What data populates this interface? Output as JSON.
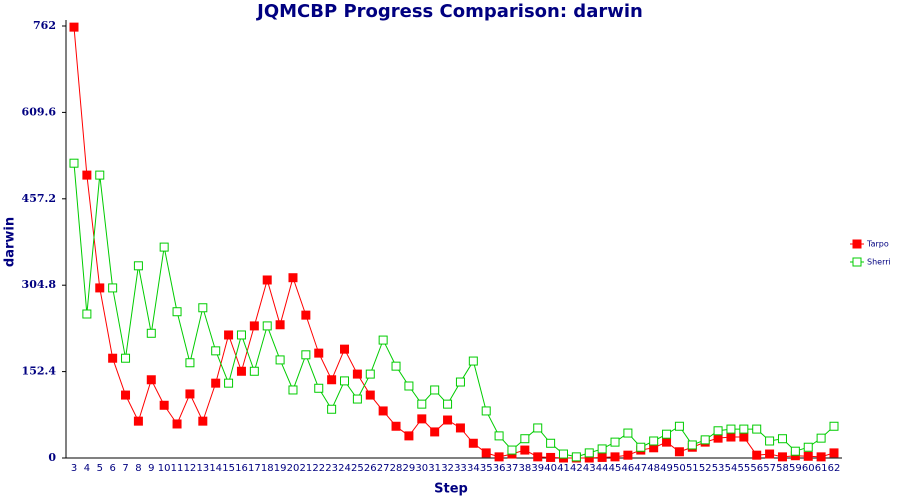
{
  "chart_data": {
    "type": "line",
    "title": "JQMCBP Progress Comparison: darwin",
    "x_label": "Step",
    "y_label": "darwin",
    "x": [
      3,
      4,
      5,
      6,
      7,
      8,
      9,
      10,
      11,
      12,
      13,
      14,
      15,
      16,
      17,
      18,
      19,
      20,
      21,
      22,
      23,
      24,
      25,
      26,
      27,
      28,
      29,
      30,
      31,
      32,
      33,
      34,
      35,
      36,
      37,
      38,
      39,
      40,
      41,
      42,
      43,
      44,
      45,
      46,
      47,
      48,
      49,
      50,
      51,
      52,
      53,
      54,
      55,
      56,
      57,
      58,
      59,
      60,
      61,
      62
    ],
    "series": [
      {
        "name": "Tarpo",
        "color": "#ff0000",
        "marker": "filled",
        "values": [
          760,
          499,
          300,
          176,
          111,
          65,
          138,
          93,
          60,
          113,
          65,
          132,
          217,
          153,
          233,
          314,
          235,
          318,
          252,
          185,
          138,
          192,
          148,
          111,
          83,
          56,
          39,
          69,
          46,
          67,
          53,
          26,
          9,
          2,
          7,
          14,
          2,
          1,
          0,
          0,
          0,
          1,
          2,
          5,
          14,
          18,
          28,
          11,
          19,
          28,
          35,
          37,
          37,
          5,
          7,
          2,
          4,
          3,
          2,
          9
        ]
      },
      {
        "name": "Sherri",
        "color": "#00cc00",
        "marker": "hollow",
        "values": [
          520,
          254,
          499,
          300,
          176,
          339,
          220,
          372,
          258,
          168,
          265,
          189,
          132,
          217,
          153,
          233,
          173,
          120,
          182,
          123,
          86,
          136,
          104,
          148,
          208,
          162,
          127,
          95,
          120,
          95,
          134,
          171,
          83,
          39,
          14,
          34,
          53,
          26,
          7,
          2,
          9,
          16,
          28,
          44,
          19,
          30,
          42,
          56,
          23,
          32,
          48,
          51,
          51,
          51,
          30,
          34,
          12,
          19,
          35,
          56
        ]
      }
    ],
    "ylim": [
      0,
      762
    ],
    "yticks": [
      0,
      152.4,
      304.8,
      457.2,
      609.6,
      762
    ],
    "xlim": [
      3,
      62
    ],
    "legend": "right"
  }
}
